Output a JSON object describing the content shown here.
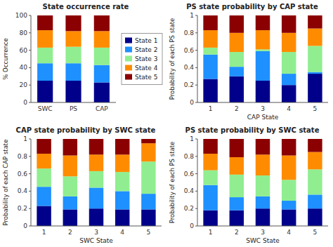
{
  "chart_data": [
    {
      "type": "bar",
      "stacked": true,
      "title": "State occurrence rate",
      "y_label": "% Occurrence",
      "categories": [
        "SWC",
        "PS",
        "CAP"
      ],
      "series": [
        {
          "name": "State 1",
          "color": "#00008B",
          "values": [
            25,
            25,
            23
          ]
        },
        {
          "name": "State 2",
          "color": "#1E90FF",
          "values": [
            20,
            20,
            20
          ]
        },
        {
          "name": "State 3",
          "color": "#90EE90",
          "values": [
            18,
            19,
            20
          ]
        },
        {
          "name": "State 4",
          "color": "#FF8C00",
          "values": [
            20,
            18,
            19
          ]
        },
        {
          "name": "State 5",
          "color": "#8B0000",
          "values": [
            17,
            18,
            18
          ]
        }
      ],
      "ylim": [
        0,
        100
      ],
      "yticks": [
        0,
        20,
        40,
        60,
        80,
        100
      ],
      "legend": "right"
    },
    {
      "type": "bar",
      "stacked": true,
      "title": "PS state probability by CAP state",
      "x_label": "CAP State",
      "y_label": "Probability of each PS state",
      "categories": [
        "1",
        "2",
        "3",
        "4",
        "5"
      ],
      "series": [
        {
          "color": "#00008B",
          "values": [
            0.27,
            0.3,
            0.25,
            0.2,
            0.33
          ]
        },
        {
          "color": "#1E90FF",
          "values": [
            0.28,
            0.11,
            0.34,
            0.13,
            0.02
          ]
        },
        {
          "color": "#90EE90",
          "values": [
            0.08,
            0.17,
            0.02,
            0.25,
            0.3
          ]
        },
        {
          "color": "#FF8C00",
          "values": [
            0.2,
            0.22,
            0.22,
            0.22,
            0.2
          ]
        },
        {
          "color": "#8B0000",
          "values": [
            0.17,
            0.2,
            0.17,
            0.2,
            0.15
          ]
        }
      ],
      "ylim": [
        0,
        1
      ],
      "yticks": [
        0,
        0.2,
        0.4,
        0.6,
        0.8,
        1
      ]
    },
    {
      "type": "bar",
      "stacked": true,
      "title": "CAP state probability by SWC state",
      "x_label": "SWC State",
      "y_label": "Probability of each CAP state",
      "categories": [
        "1",
        "2",
        "3",
        "4",
        "5"
      ],
      "series": [
        {
          "color": "#00008B",
          "values": [
            0.23,
            0.19,
            0.2,
            0.19,
            0.19
          ]
        },
        {
          "color": "#1E90FF",
          "values": [
            0.22,
            0.15,
            0.24,
            0.21,
            0.18
          ]
        },
        {
          "color": "#90EE90",
          "values": [
            0.21,
            0.23,
            0.19,
            0.22,
            0.37
          ]
        },
        {
          "color": "#FF8C00",
          "values": [
            0.17,
            0.24,
            0.19,
            0.2,
            0.21
          ]
        },
        {
          "color": "#8B0000",
          "values": [
            0.17,
            0.19,
            0.18,
            0.18,
            0.05
          ]
        }
      ],
      "ylim": [
        0,
        1
      ],
      "yticks": [
        0,
        0.2,
        0.4,
        0.6,
        0.8,
        1
      ]
    },
    {
      "type": "bar",
      "stacked": true,
      "title": "PS state probability by SWC state",
      "x_label": "SWC State",
      "y_label": "Probability of each PS state",
      "categories": [
        "1",
        "2",
        "3",
        "4",
        "5"
      ],
      "series": [
        {
          "color": "#00008B",
          "values": [
            0.18,
            0.18,
            0.2,
            0.19,
            0.2
          ]
        },
        {
          "color": "#1E90FF",
          "values": [
            0.29,
            0.15,
            0.14,
            0.1,
            0.16
          ]
        },
        {
          "color": "#90EE90",
          "values": [
            0.17,
            0.26,
            0.24,
            0.24,
            0.29
          ]
        },
        {
          "color": "#FF8C00",
          "values": [
            0.19,
            0.2,
            0.24,
            0.28,
            0.2
          ]
        },
        {
          "color": "#8B0000",
          "values": [
            0.17,
            0.21,
            0.18,
            0.19,
            0.15
          ]
        }
      ],
      "ylim": [
        0,
        1
      ],
      "yticks": [
        0,
        0.2,
        0.4,
        0.6,
        0.8,
        1
      ]
    }
  ]
}
